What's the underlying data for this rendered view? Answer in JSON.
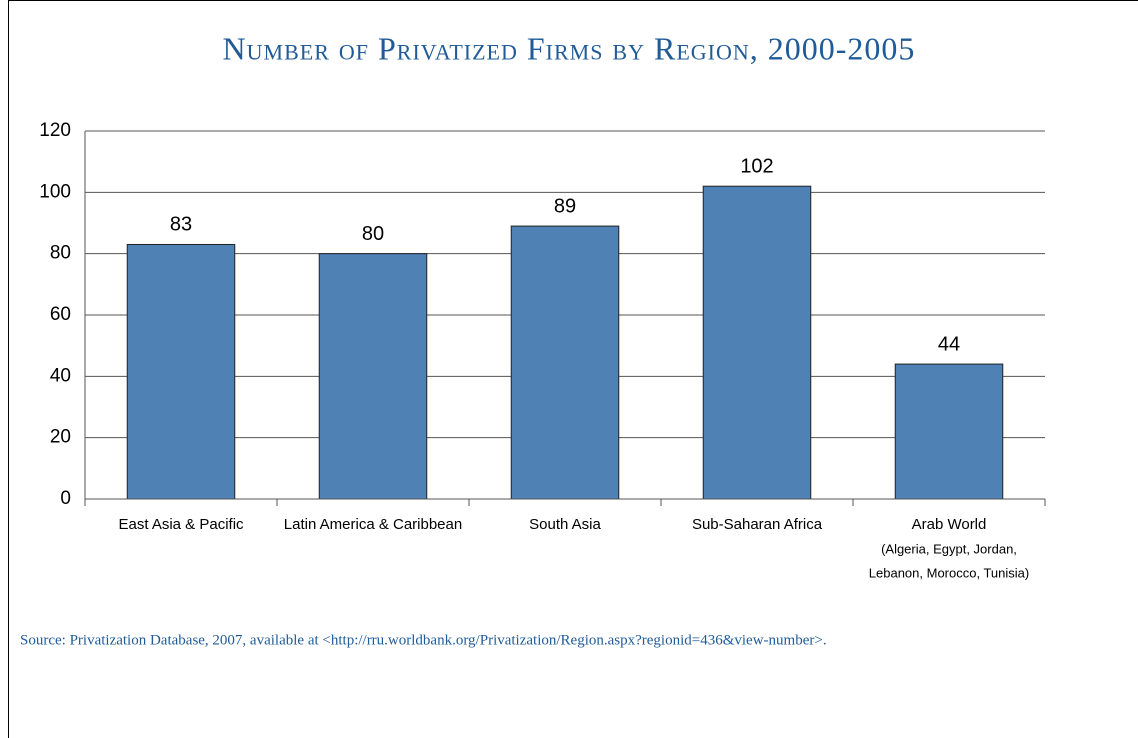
{
  "chart_data": {
    "type": "bar",
    "title": "Number of Privatized Firms by Region, 2000-2005",
    "categories": [
      "East Asia & Pacific",
      "Latin America & Caribbean",
      "South Asia",
      "Sub-Saharan Africa",
      "Arab World"
    ],
    "category_note": [
      "(Algeria, Egypt, Jordan,",
      "Lebanon, Morocco, Tunisia)"
    ],
    "values": [
      83,
      80,
      89,
      102,
      44
    ],
    "color": "#4f81b4",
    "ylim": [
      0,
      120
    ],
    "yticks": [
      0,
      20,
      40,
      60,
      80,
      100,
      120
    ],
    "grid": true,
    "source": "Source: Privatization Database, 2007, available at <http://rru.worldbank.org/Privatization/Region.aspx?regionid=436&view-number>."
  }
}
